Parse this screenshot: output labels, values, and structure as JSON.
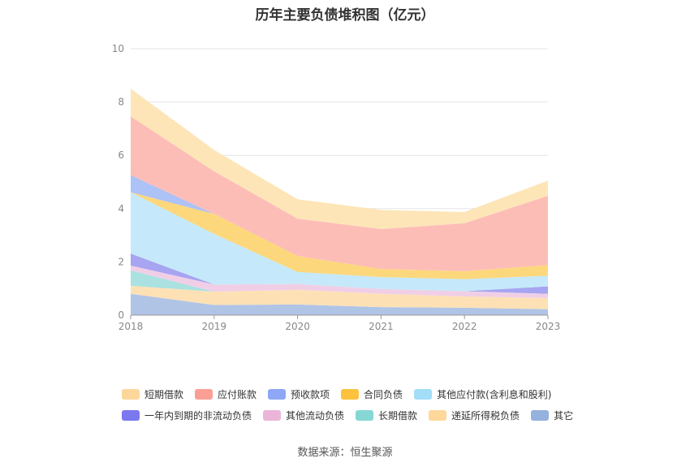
{
  "title": "历年主要负债堆积图（亿元）",
  "source": "数据来源：恒生聚源",
  "chart_data": {
    "type": "area",
    "stacked": true,
    "x": [
      "2018",
      "2019",
      "2020",
      "2021",
      "2022",
      "2023"
    ],
    "ylim": [
      0,
      10
    ],
    "yticks": [
      "0",
      "2",
      "4",
      "6",
      "8",
      "10"
    ],
    "grid": true,
    "legend_position": "bottom",
    "series": [
      {
        "name": "其它",
        "color": "#b0c4e6",
        "values": [
          0.8,
          0.38,
          0.4,
          0.3,
          0.28,
          0.22
        ]
      },
      {
        "name": "递延所得税负债",
        "color": "#fde1b5",
        "values": [
          0.3,
          0.5,
          0.55,
          0.5,
          0.42,
          0.42
        ]
      },
      {
        "name": "长期借款",
        "color": "#abe1e1",
        "values": [
          0.58,
          0.0,
          0.0,
          0.0,
          0.0,
          0.0
        ]
      },
      {
        "name": "其他流动负债",
        "color": "#f0cfe6",
        "values": [
          0.18,
          0.27,
          0.22,
          0.18,
          0.2,
          0.16
        ]
      },
      {
        "name": "一年内到期的非流动负债",
        "color": "#a7a4f1",
        "values": [
          0.45,
          0.0,
          0.0,
          0.0,
          0.0,
          0.28
        ]
      },
      {
        "name": "其他应付款(含利息和股利)",
        "color": "#c5e9fa",
        "values": [
          2.3,
          1.9,
          0.45,
          0.45,
          0.45,
          0.4
        ]
      },
      {
        "name": "合同负债",
        "color": "#fdd77c",
        "values": [
          0.0,
          0.75,
          0.6,
          0.3,
          0.3,
          0.4
        ]
      },
      {
        "name": "预收款项",
        "color": "#adc2f6",
        "values": [
          0.65,
          0.0,
          0.0,
          0.0,
          0.0,
          0.0
        ]
      },
      {
        "name": "应付账款",
        "color": "#fdbdb7",
        "values": [
          2.2,
          1.6,
          1.4,
          1.5,
          1.8,
          2.6
        ]
      },
      {
        "name": "短期借款",
        "color": "#fde5b8",
        "values": [
          1.04,
          0.8,
          0.73,
          0.72,
          0.42,
          0.57
        ]
      }
    ]
  },
  "legend": {
    "row1": [
      {
        "label": "短期借款",
        "color": "#fdd79a"
      },
      {
        "label": "应付账款",
        "color": "#fb9f95"
      },
      {
        "label": "预收款项",
        "color": "#8ea8f6"
      },
      {
        "label": "合同负债",
        "color": "#fcc23e"
      },
      {
        "label": "其他应付款(含利息和股利)",
        "color": "#a3ddf8"
      }
    ],
    "row2": [
      {
        "label": "一年内到期的非流动负债",
        "color": "#7b78f0"
      },
      {
        "label": "其他流动负债",
        "color": "#ebb5da"
      },
      {
        "label": "长期借款",
        "color": "#86d7d4"
      },
      {
        "label": "递延所得税负债",
        "color": "#fdd89a"
      },
      {
        "label": "其它",
        "color": "#95b1de"
      }
    ]
  }
}
